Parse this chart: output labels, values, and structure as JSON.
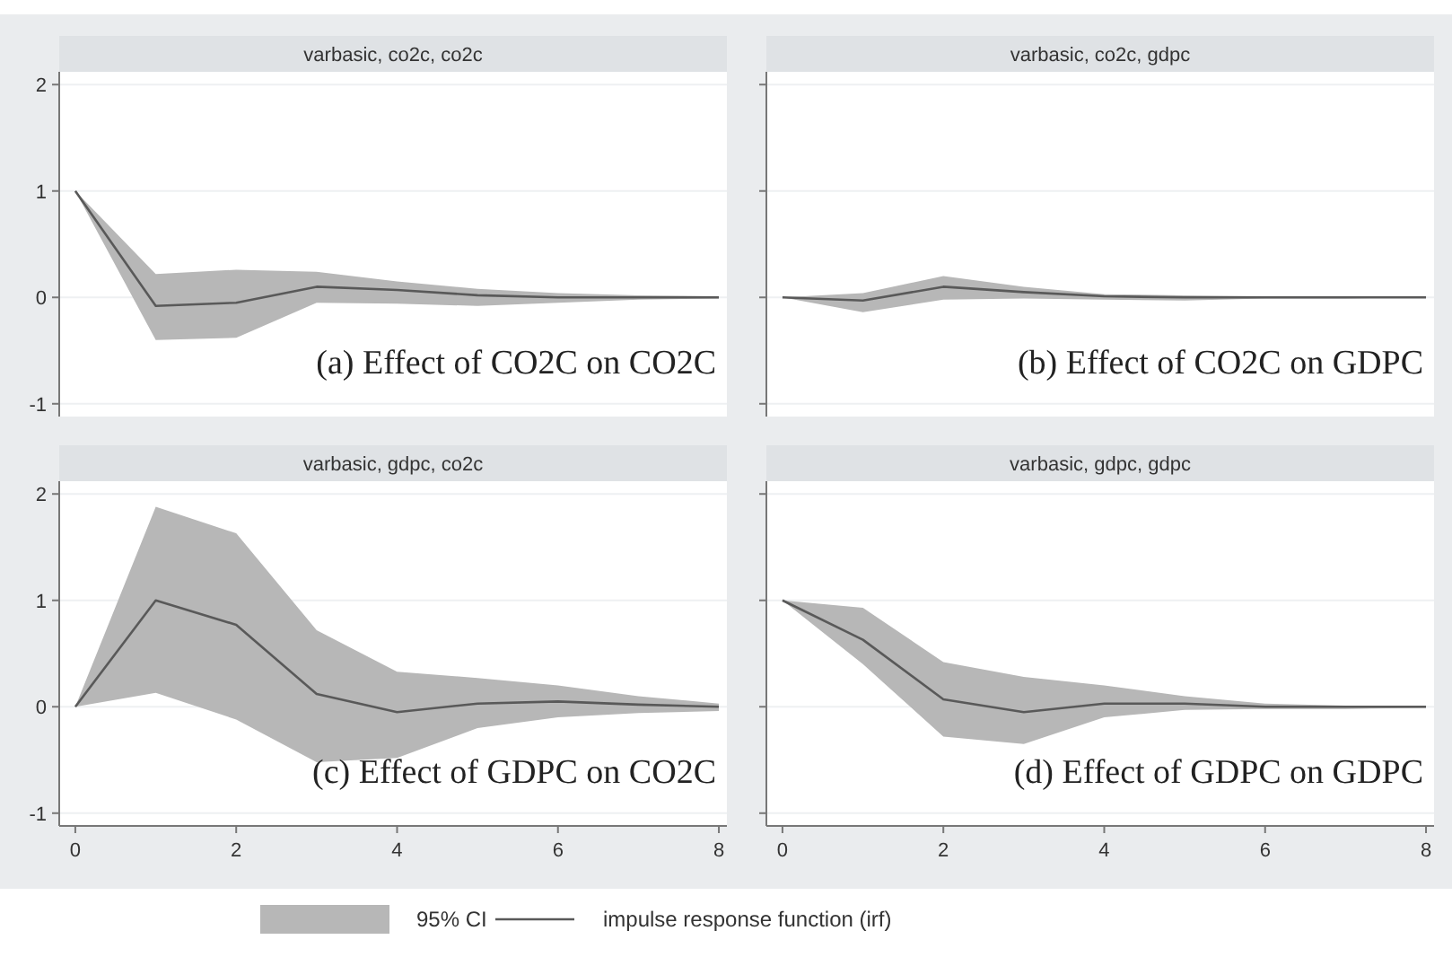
{
  "chart_data": [
    {
      "type": "line",
      "title": "varbasic, co2c, co2c",
      "subtitle": "(a) Effect of CO2C on CO2C",
      "x": [
        0,
        1,
        2,
        3,
        4,
        5,
        6,
        7,
        8
      ],
      "xlim": [
        -0.2,
        8.1
      ],
      "ylim": [
        -1.12,
        2.12
      ],
      "yticks": [
        -1,
        0,
        1,
        2
      ],
      "grid": "y",
      "tick_labels": "y",
      "series": [
        {
          "color": "#595959",
          "values": [
            1,
            -0.08,
            -0.05,
            0.1,
            0.07,
            0.02,
            0,
            0,
            0
          ],
          "lower": [
            1,
            -0.4,
            -0.38,
            -0.05,
            -0.06,
            -0.08,
            -0.05,
            -0.02,
            -0.01
          ],
          "upper": [
            1,
            0.22,
            0.26,
            0.24,
            0.15,
            0.08,
            0.04,
            0.02,
            0.01
          ]
        }
      ]
    },
    {
      "type": "line",
      "title": "varbasic, co2c, gdpc",
      "subtitle": "(b) Effect of CO2C on GDPC",
      "x": [
        0,
        1,
        2,
        3,
        4,
        5,
        6,
        7,
        8
      ],
      "xlim": [
        -0.2,
        8.1
      ],
      "ylim": [
        -1.12,
        2.12
      ],
      "yticks": [
        -1,
        0,
        1,
        2
      ],
      "grid": "y",
      "tick_labels": false,
      "series": [
        {
          "color": "#595959",
          "values": [
            0,
            -0.03,
            0.1,
            0.05,
            0.01,
            0,
            0,
            0,
            0
          ],
          "lower": [
            0,
            -0.14,
            -0.02,
            -0.01,
            -0.02,
            -0.03,
            -0.01,
            -0.01,
            0
          ],
          "upper": [
            0,
            0.04,
            0.2,
            0.1,
            0.03,
            0.02,
            0.01,
            0.01,
            0
          ]
        }
      ]
    },
    {
      "type": "line",
      "title": "varbasic, gdpc, co2c",
      "subtitle": "(c) Effect of GDPC on CO2C",
      "x": [
        0,
        1,
        2,
        3,
        4,
        5,
        6,
        7,
        8
      ],
      "xlim": [
        -0.2,
        8.1
      ],
      "xticks": [
        0,
        2,
        4,
        6,
        8
      ],
      "ylim": [
        -1.12,
        2.12
      ],
      "yticks": [
        -1,
        0,
        1,
        2
      ],
      "grid": "y",
      "series": [
        {
          "color": "#595959",
          "values": [
            0,
            1,
            0.77,
            0.12,
            -0.05,
            0.03,
            0.05,
            0.02,
            0
          ],
          "lower": [
            0,
            0.13,
            -0.12,
            -0.52,
            -0.48,
            -0.2,
            -0.1,
            -0.06,
            -0.04
          ],
          "upper": [
            0,
            1.88,
            1.63,
            0.72,
            0.33,
            0.27,
            0.2,
            0.1,
            0.03
          ]
        }
      ]
    },
    {
      "type": "line",
      "title": "varbasic, gdpc, gdpc",
      "subtitle": "(d) Effect of GDPC on GDPC",
      "x": [
        0,
        1,
        2,
        3,
        4,
        5,
        6,
        7,
        8
      ],
      "xlim": [
        -0.2,
        8.1
      ],
      "xticks": [
        0,
        2,
        4,
        6,
        8
      ],
      "ylim": [
        -1.12,
        2.12
      ],
      "yticks": [
        -1,
        0,
        1,
        2
      ],
      "grid": "y",
      "tick_labels": "x",
      "legend": "bottom",
      "annotations": [
        "95% CI"
      ],
      "series": [
        {
          "name": "impulse response function (irf)",
          "color": "#595959",
          "values": [
            1,
            0.63,
            0.07,
            -0.05,
            0.03,
            0.03,
            0,
            0,
            0
          ],
          "lower": [
            1,
            0.4,
            -0.28,
            -0.35,
            -0.1,
            -0.03,
            -0.02,
            -0.02,
            -0.01
          ],
          "upper": [
            1,
            0.93,
            0.42,
            0.28,
            0.2,
            0.1,
            0.03,
            0.01,
            0
          ]
        }
      ]
    }
  ]
}
